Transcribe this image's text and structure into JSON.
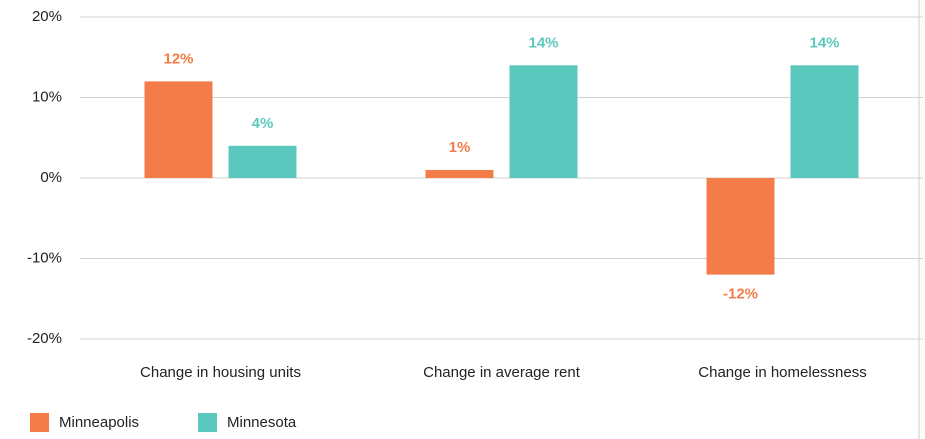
{
  "chart_data": {
    "type": "bar",
    "categories": [
      "Change in housing units",
      "Change in average rent",
      "Change in homelessness"
    ],
    "series": [
      {
        "name": "Minneapolis",
        "color": "#f47c48",
        "values": [
          12,
          1,
          -12
        ],
        "value_labels": [
          "12%",
          "1%",
          "-12%"
        ]
      },
      {
        "name": "Minnesota",
        "color": "#5bc8bd",
        "values": [
          4,
          14,
          14
        ],
        "value_labels": [
          "4%",
          "14%",
          "14%"
        ]
      }
    ],
    "ylim": [
      -20,
      20
    ],
    "yticks": [
      {
        "value": -20,
        "label": "-20%"
      },
      {
        "value": -10,
        "label": "-10%"
      },
      {
        "value": 0,
        "label": "0%"
      },
      {
        "value": 10,
        "label": "10%"
      },
      {
        "value": 20,
        "label": "20%"
      }
    ],
    "grid": true,
    "legend": "bottom-left"
  }
}
